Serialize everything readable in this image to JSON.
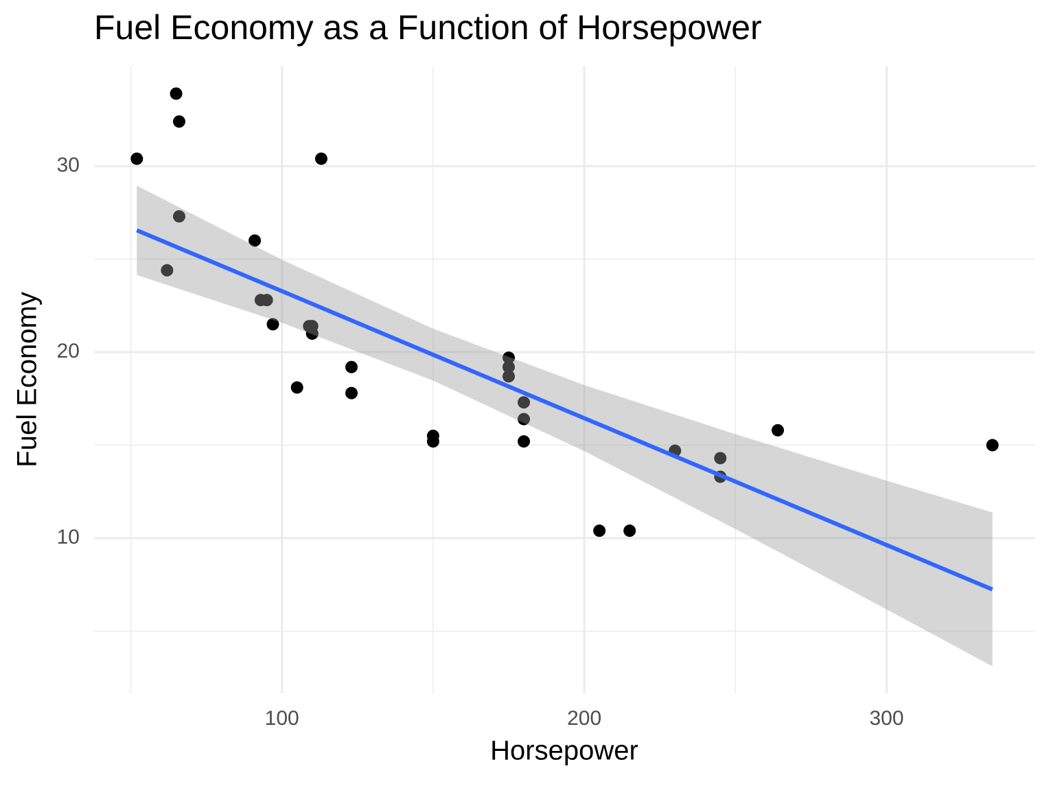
{
  "chart_data": {
    "type": "scatter",
    "title": "Fuel Economy as a Function of Horsepower",
    "x_label": "Horsepower",
    "y_label": "Fuel Economy",
    "x": [
      110,
      110,
      93,
      110,
      175,
      105,
      245,
      62,
      95,
      123,
      123,
      180,
      180,
      180,
      205,
      215,
      230,
      66,
      52,
      65,
      97,
      150,
      150,
      245,
      175,
      66,
      91,
      113,
      264,
      175,
      335,
      109
    ],
    "values": [
      21.0,
      21.0,
      22.8,
      21.4,
      18.7,
      18.1,
      14.3,
      24.4,
      22.8,
      19.2,
      17.8,
      16.4,
      17.3,
      15.2,
      10.4,
      10.4,
      14.7,
      32.4,
      30.4,
      33.9,
      21.5,
      15.5,
      15.2,
      13.3,
      19.2,
      27.3,
      26.0,
      30.4,
      15.8,
      19.7,
      15.0,
      21.4
    ],
    "color": "#000000",
    "smooth": {
      "x": [
        52,
        100,
        150,
        200,
        250,
        300,
        335
      ],
      "values": [
        26.55,
        23.28,
        19.86,
        16.45,
        13.04,
        9.63,
        7.24
      ],
      "lower": [
        24.15,
        21.58,
        18.47,
        14.68,
        10.49,
        6.17,
        3.11
      ],
      "upper": [
        28.95,
        24.97,
        21.26,
        18.23,
        15.59,
        13.09,
        11.38
      ],
      "color": "#3366ff",
      "fill": "#999999"
    },
    "xlim": [
      37.85,
      349.15
    ],
    "ylim": [
      1.66,
      35.39
    ],
    "xticks": [
      100,
      200,
      300
    ],
    "yticks": [
      10,
      20,
      30
    ],
    "xminor": [
      50,
      150,
      250
    ],
    "yminor": [
      5,
      15,
      25
    ],
    "grid": true
  }
}
